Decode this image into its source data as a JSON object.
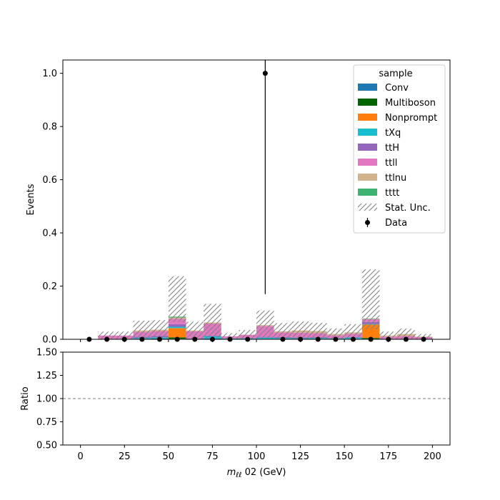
{
  "chart_data": [
    {
      "type": "bar",
      "stacked": true,
      "ylabel": "Events",
      "xlim": [
        -10,
        210
      ],
      "ylim": [
        0,
        1.05
      ],
      "yticks": [
        "0.0",
        "0.2",
        "0.4",
        "0.6",
        "0.8",
        "1.0"
      ],
      "bin_edges": [
        0,
        10,
        20,
        30,
        40,
        50,
        60,
        70,
        80,
        90,
        100,
        110,
        120,
        130,
        140,
        150,
        160,
        170,
        180,
        190,
        200
      ],
      "legend": {
        "title": "sample",
        "placement": "top-right"
      },
      "series": [
        {
          "name": "Conv",
          "color": "#1f77b4",
          "values": [
            0,
            0,
            0,
            0,
            0.003,
            0.002,
            0,
            0.003,
            0,
            0,
            0.002,
            0,
            0,
            0,
            0,
            0.002,
            0.002,
            0,
            0,
            0
          ]
        },
        {
          "name": "Multiboson",
          "color": "#006400",
          "values": [
            0,
            0,
            0,
            0,
            0,
            0.005,
            0,
            0,
            0,
            0,
            0,
            0,
            0,
            0,
            0,
            0,
            0.003,
            0,
            0,
            0
          ]
        },
        {
          "name": "Nonprompt",
          "color": "#ff7f0e",
          "values": [
            0,
            0,
            0,
            0,
            0,
            0.035,
            0,
            0,
            0,
            0,
            0,
            0,
            0,
            0,
            0,
            0,
            0.05,
            0,
            0,
            0
          ]
        },
        {
          "name": "tXq",
          "color": "#17becf",
          "values": [
            0,
            0,
            0,
            0.005,
            0.004,
            0.005,
            0,
            0.008,
            0.003,
            0.003,
            0.004,
            0.005,
            0.004,
            0.005,
            0.003,
            0.004,
            0.002,
            0,
            0,
            0
          ]
        },
        {
          "name": "ttH",
          "color": "#9467bd",
          "values": [
            0,
            0.002,
            0.002,
            0.005,
            0.006,
            0.01,
            0.003,
            0.003,
            0,
            0.002,
            0.004,
            0.003,
            0.003,
            0.003,
            0.002,
            0.003,
            0.008,
            0.002,
            0.002,
            0
          ]
        },
        {
          "name": "ttll",
          "color": "#e377c2",
          "values": [
            0,
            0.012,
            0.012,
            0.018,
            0.018,
            0.02,
            0.027,
            0.045,
            0.008,
            0.012,
            0.04,
            0.018,
            0.018,
            0.015,
            0.01,
            0.012,
            0.01,
            0.008,
            0.01,
            0.008
          ]
        },
        {
          "name": "ttlnu",
          "color": "#d2b48c",
          "values": [
            0,
            0,
            0,
            0.005,
            0.005,
            0.005,
            0.003,
            0.004,
            0,
            0,
            0.003,
            0.004,
            0.008,
            0.008,
            0.005,
            0.005,
            0.002,
            0.004,
            0.008,
            0.002
          ]
        },
        {
          "name": "tttt",
          "color": "#3cb371",
          "values": [
            0,
            0,
            0,
            0,
            0,
            0.003,
            0,
            0,
            0,
            0,
            0,
            0,
            0,
            0,
            0,
            0,
            0.001,
            0,
            0,
            0
          ]
        }
      ],
      "stat_unc": {
        "name": "Stat. Unc.",
        "up": [
          0,
          0.015,
          0.015,
          0.037,
          0.036,
          0.152,
          0.033,
          0.07,
          0.012,
          0.018,
          0.055,
          0.031,
          0.034,
          0.031,
          0.021,
          0.031,
          0.185,
          0.015,
          0.02,
          0.01
        ],
        "down": [
          0,
          0.013,
          0.013,
          0.033,
          0.033,
          0.02,
          0.033,
          0.058,
          0.011,
          0.017,
          0.049,
          0.03,
          0.032,
          0.031,
          0.02,
          0.023,
          0.04,
          0.014,
          0.019,
          0.01
        ]
      },
      "data": {
        "name": "Data",
        "x": [
          5,
          15,
          25,
          35,
          45,
          55,
          65,
          75,
          85,
          95,
          105,
          115,
          125,
          135,
          145,
          155,
          165,
          175,
          185,
          195
        ],
        "y": [
          0,
          0,
          0,
          0,
          0,
          0,
          0,
          0,
          0,
          0,
          1.0,
          0,
          0,
          0,
          0,
          0,
          0,
          0,
          0,
          0
        ],
        "yerr_low": [
          0,
          0,
          0,
          0,
          0,
          0,
          0,
          0,
          0,
          0,
          0.83,
          0,
          0,
          0,
          0,
          0,
          0,
          0,
          0,
          0
        ],
        "yerr_high": [
          0,
          0,
          0,
          0,
          0,
          0,
          0,
          0,
          0,
          0,
          1.36,
          0,
          0,
          0,
          0,
          0,
          0,
          0,
          0,
          0
        ]
      }
    },
    {
      "type": "line",
      "ylabel": "Ratio",
      "xlabel": "m_ℓℓ 02 (GeV)",
      "xlim": [
        -10,
        210
      ],
      "ylim": [
        0.5,
        1.5
      ],
      "xticks": [
        "0",
        "25",
        "50",
        "75",
        "100",
        "125",
        "150",
        "175",
        "200"
      ],
      "yticks": [
        "0.50",
        "0.75",
        "1.00",
        "1.25",
        "1.50"
      ],
      "reference_line": 1.0
    }
  ]
}
